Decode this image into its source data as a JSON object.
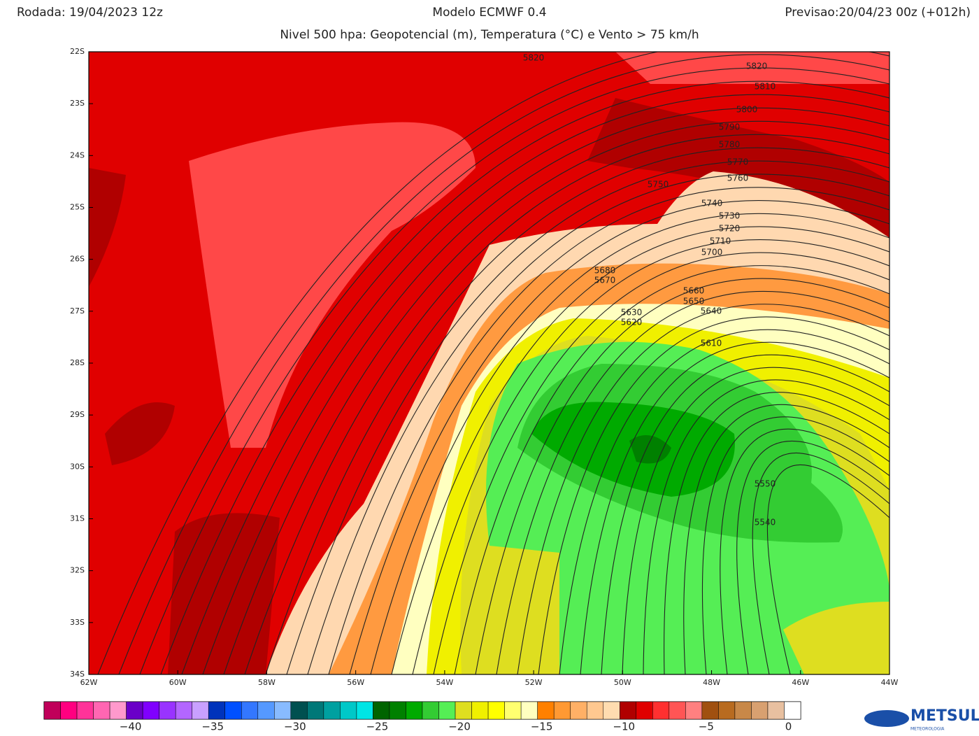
{
  "header": {
    "run": "Rodada: 19/04/2023 12z",
    "model": "Modelo ECMWF 0.4",
    "forecast": "Previsao:20/04/23 00z (+012h)",
    "subtitle": "Nivel 500 hpa: Geopotencial (m), Temperatura (°C) e Vento > 75 km/h"
  },
  "map": {
    "lat_labels": [
      "22S",
      "23S",
      "24S",
      "25S",
      "26S",
      "27S",
      "28S",
      "29S",
      "30S",
      "31S",
      "32S",
      "33S",
      "34S"
    ],
    "lon_labels": [
      "62W",
      "60W",
      "58W",
      "56W",
      "54W",
      "52W",
      "50W",
      "48W",
      "46W",
      "44W"
    ],
    "contour_labels": [
      5820,
      5820,
      5810,
      5800,
      5790,
      5780,
      5770,
      5760,
      5750,
      5740,
      5730,
      5720,
      5710,
      5700,
      5680,
      5670,
      5660,
      5650,
      5640,
      5630,
      5620,
      5610,
      5550,
      5540
    ]
  },
  "colorbar": {
    "colors": [
      "#c0005a",
      "#ff0080",
      "#ff3399",
      "#ff66b2",
      "#ff99cc",
      "#6a00c8",
      "#8000ff",
      "#9933ff",
      "#b366ff",
      "#c9a0ff",
      "#0033bb",
      "#0050ff",
      "#3377ff",
      "#5599ff",
      "#88bbff",
      "#005050",
      "#007878",
      "#00a0a0",
      "#00c8c8",
      "#00e5e5",
      "#006400",
      "#008000",
      "#00aa00",
      "#33cc33",
      "#55ee55",
      "#dede20",
      "#f0f000",
      "#ffff00",
      "#ffff70",
      "#ffffc0",
      "#ff8000",
      "#ff9933",
      "#ffb066",
      "#ffc890",
      "#ffdcb0",
      "#b00000",
      "#e00000",
      "#ff3030",
      "#ff5555",
      "#ff8080",
      "#a05010",
      "#b86b20",
      "#c88848",
      "#d8a070",
      "#e8c0a0",
      "#ffffff"
    ],
    "ticks": [
      {
        "value": -40,
        "label": "−40"
      },
      {
        "value": -35,
        "label": "−35"
      },
      {
        "value": -30,
        "label": "−30"
      },
      {
        "value": -25,
        "label": "−25"
      },
      {
        "value": -20,
        "label": "−20"
      },
      {
        "value": -15,
        "label": "−15"
      },
      {
        "value": -10,
        "label": "−10"
      },
      {
        "value": -5,
        "label": "−5"
      },
      0
    ]
  },
  "logo": {
    "name": "METSUL",
    "tagline": "METEOROLOGIA"
  }
}
